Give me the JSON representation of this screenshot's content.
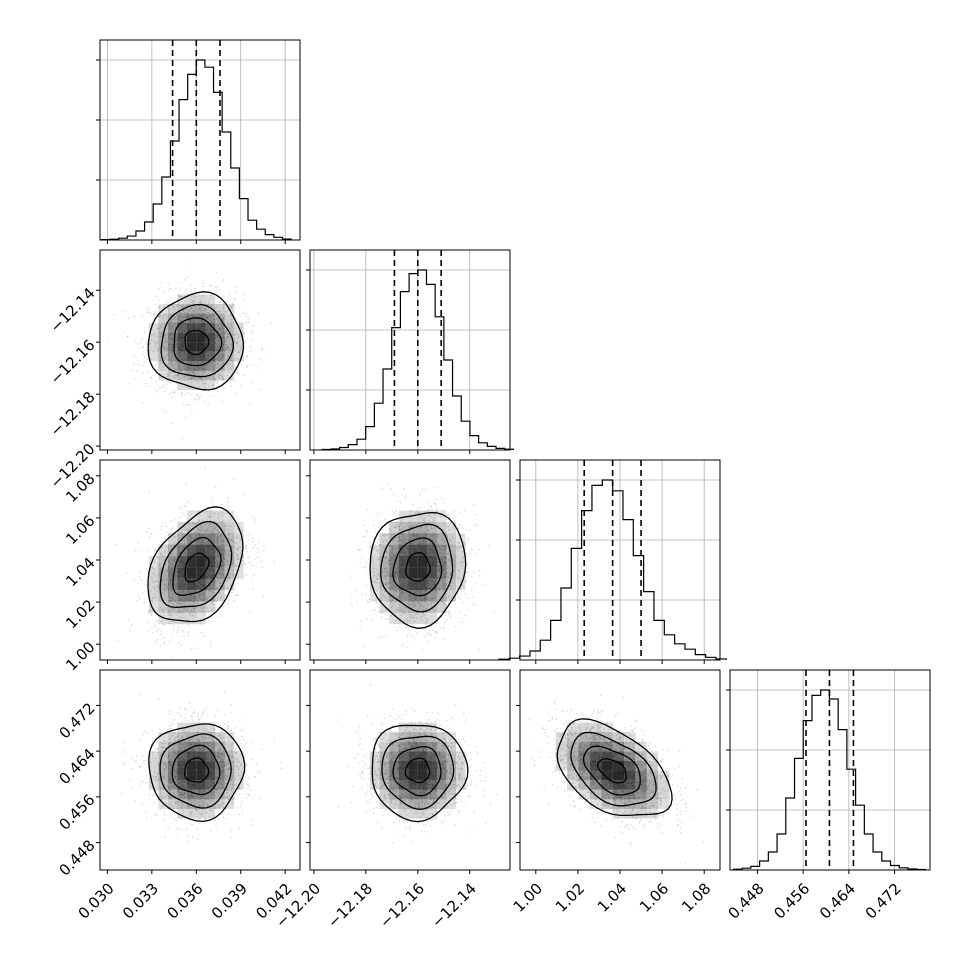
{
  "chart_data": {
    "type": "corner",
    "style": {
      "hist_color": "#000000",
      "quantile_color": "#000000",
      "grid_color": "#b0b0b0",
      "point_color": "#9a9a9a",
      "density_color": "#000000"
    },
    "parameters": [
      {
        "range": [
          0.0295,
          0.043
        ],
        "ticks": [
          0.03,
          0.033,
          0.036,
          0.039,
          0.042
        ],
        "tick_labels": [
          "0.030",
          "0.033",
          "0.036",
          "0.039",
          "0.042"
        ],
        "mean": 0.036,
        "sd": 0.0016,
        "quantiles": [
          0.0344,
          0.036,
          0.0376
        ]
      },
      {
        "range": [
          -12.2015,
          -12.1245
        ],
        "ticks": [
          -12.2,
          -12.18,
          -12.16,
          -12.14
        ],
        "tick_labels": [
          "−12.20",
          "−12.18",
          "−12.16",
          "−12.14"
        ],
        "mean": -12.16,
        "sd": 0.0092,
        "quantiles": [
          -12.169,
          -12.16,
          -12.151
        ]
      },
      {
        "range": [
          0.9925,
          1.0875
        ],
        "ticks": [
          1.0,
          1.02,
          1.04,
          1.06,
          1.08
        ],
        "tick_labels": [
          "1.00",
          "1.02",
          "1.04",
          "1.06",
          "1.08"
        ],
        "mean": 1.0365,
        "sd": 0.0135,
        "quantiles": [
          1.023,
          1.0365,
          1.05
        ]
      },
      {
        "range": [
          0.4432,
          0.4782
        ],
        "ticks": [
          0.448,
          0.456,
          0.464,
          0.472
        ],
        "tick_labels": [
          "0.448",
          "0.456",
          "0.464",
          "0.472"
        ],
        "mean": 0.4606,
        "sd": 0.0042,
        "quantiles": [
          0.4565,
          0.4606,
          0.4648
        ]
      }
    ],
    "correlations": {
      "1-0": 0.0,
      "2-0": 0.35,
      "2-1": 0.05,
      "3-0": 0.0,
      "3-1": 0.0,
      "3-2": -0.45
    },
    "histograms": [
      [
        0.002,
        0.004,
        0.01,
        0.022,
        0.05,
        0.1,
        0.2,
        0.35,
        0.55,
        0.78,
        0.92,
        1.0,
        0.96,
        0.82,
        0.6,
        0.4,
        0.23,
        0.11,
        0.06,
        0.03,
        0.015,
        0.005
      ],
      [
        0.003,
        0.006,
        0.014,
        0.03,
        0.06,
        0.13,
        0.26,
        0.45,
        0.68,
        0.88,
        0.98,
        1.0,
        0.92,
        0.74,
        0.5,
        0.3,
        0.16,
        0.08,
        0.04,
        0.02,
        0.009,
        0.004
      ],
      [
        0.004,
        0.01,
        0.022,
        0.05,
        0.11,
        0.22,
        0.4,
        0.62,
        0.83,
        0.97,
        1.0,
        0.94,
        0.78,
        0.58,
        0.38,
        0.22,
        0.14,
        0.09,
        0.06,
        0.03,
        0.015,
        0.006
      ],
      [
        0.004,
        0.01,
        0.02,
        0.05,
        0.1,
        0.2,
        0.4,
        0.62,
        0.83,
        0.97,
        1.0,
        0.95,
        0.78,
        0.56,
        0.36,
        0.2,
        0.1,
        0.05,
        0.025,
        0.012,
        0.006,
        0.003
      ]
    ]
  }
}
